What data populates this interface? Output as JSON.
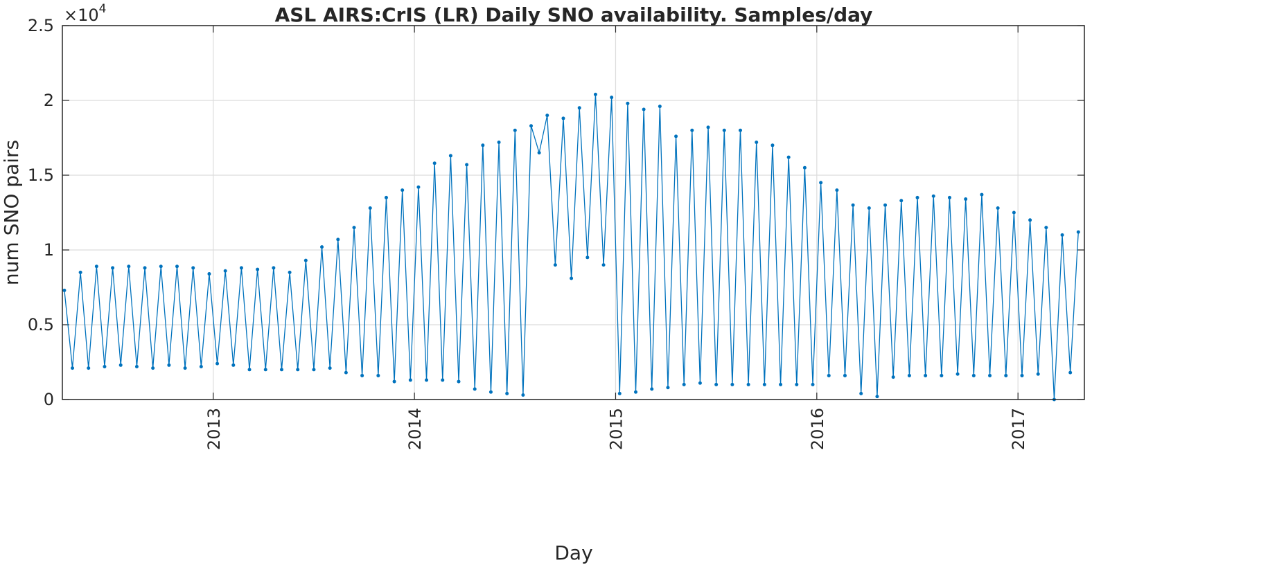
{
  "chart_data": {
    "type": "line",
    "title": "ASL AIRS:CrIS (LR) Daily SNO availability. Samples/day",
    "x_label": "Day",
    "y_label": "num SNO pairs",
    "y_multiplier_base": "×10",
    "y_multiplier_power": 4,
    "xlim": [
      2012.25,
      2017.33
    ],
    "xticks": [
      2013,
      2014,
      2015,
      2016,
      2017
    ],
    "ylim": [
      0,
      2.5
    ],
    "yticks": [
      0,
      0.5,
      1,
      1.5,
      2,
      2.5
    ],
    "grid": true,
    "x": [
      2012.26,
      2012.3,
      2012.34,
      2012.38,
      2012.42,
      2012.46,
      2012.5,
      2012.54,
      2012.58,
      2012.62,
      2012.66,
      2012.7,
      2012.74,
      2012.78,
      2012.82,
      2012.86,
      2012.9,
      2012.94,
      2012.98,
      2013.02,
      2013.06,
      2013.1,
      2013.14,
      2013.18,
      2013.22,
      2013.26,
      2013.3,
      2013.34,
      2013.38,
      2013.42,
      2013.46,
      2013.5,
      2013.54,
      2013.58,
      2013.62,
      2013.66,
      2013.7,
      2013.74,
      2013.78,
      2013.82,
      2013.86,
      2013.9,
      2013.94,
      2013.98,
      2014.02,
      2014.06,
      2014.1,
      2014.14,
      2014.18,
      2014.22,
      2014.26,
      2014.3,
      2014.34,
      2014.38,
      2014.42,
      2014.46,
      2014.5,
      2014.54,
      2014.58,
      2014.62,
      2014.66,
      2014.7,
      2014.74,
      2014.78,
      2014.82,
      2014.86,
      2014.9,
      2014.94,
      2014.98,
      2015.02,
      2015.06,
      2015.1,
      2015.14,
      2015.18,
      2015.22,
      2015.26,
      2015.3,
      2015.34,
      2015.38,
      2015.42,
      2015.46,
      2015.5,
      2015.54,
      2015.58,
      2015.62,
      2015.66,
      2015.7,
      2015.74,
      2015.78,
      2015.82,
      2015.86,
      2015.9,
      2015.94,
      2015.98,
      2016.02,
      2016.06,
      2016.1,
      2016.14,
      2016.18,
      2016.22,
      2016.26,
      2016.3,
      2016.34,
      2016.38,
      2016.42,
      2016.46,
      2016.5,
      2016.54,
      2016.58,
      2016.62,
      2016.66,
      2016.7,
      2016.74,
      2016.78,
      2016.82,
      2016.86,
      2016.9,
      2016.94,
      2016.98,
      2017.02,
      2017.06,
      2017.1,
      2017.14,
      2017.18,
      2017.22,
      2017.26,
      2017.3
    ],
    "series": [
      {
        "color": "#0072bd",
        "values": [
          0.73,
          0.21,
          0.85,
          0.21,
          0.89,
          0.22,
          0.88,
          0.23,
          0.89,
          0.22,
          0.88,
          0.21,
          0.89,
          0.23,
          0.89,
          0.21,
          0.88,
          0.22,
          0.84,
          0.24,
          0.86,
          0.23,
          0.88,
          0.2,
          0.87,
          0.2,
          0.88,
          0.2,
          0.85,
          0.2,
          0.93,
          0.2,
          1.02,
          0.21,
          1.07,
          0.18,
          1.15,
          0.16,
          1.28,
          0.16,
          1.35,
          0.12,
          1.4,
          0.13,
          1.42,
          0.13,
          1.58,
          0.13,
          1.63,
          0.12,
          1.57,
          0.07,
          1.7,
          0.05,
          1.72,
          0.04,
          1.8,
          0.03,
          1.83,
          1.65,
          1.9,
          0.9,
          1.88,
          0.81,
          1.95,
          0.95,
          2.04,
          0.9,
          2.02,
          0.04,
          1.98,
          0.05,
          1.94,
          0.07,
          1.96,
          0.08,
          1.76,
          0.1,
          1.8,
          0.11,
          1.82,
          0.1,
          1.8,
          0.1,
          1.8,
          0.1,
          1.72,
          0.1,
          1.7,
          0.1,
          1.62,
          0.1,
          1.55,
          0.1,
          1.45,
          0.16,
          1.4,
          0.16,
          1.3,
          0.04,
          1.28,
          0.02,
          1.3,
          0.15,
          1.33,
          0.16,
          1.35,
          0.16,
          1.36,
          0.16,
          1.35,
          0.17,
          1.34,
          0.16,
          1.37,
          0.16,
          1.28,
          0.16,
          1.25,
          0.16,
          1.2,
          0.17,
          1.15,
          0.0,
          1.1,
          0.18,
          1.12
        ]
      }
    ]
  }
}
